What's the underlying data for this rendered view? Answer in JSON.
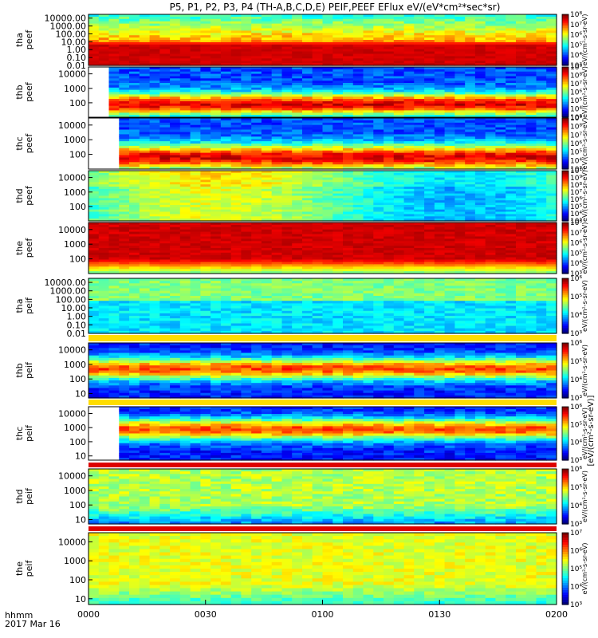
{
  "title": "P5, P1, P2, P3, P4 (TH-A,B,C,D,E) PEIF,PEEF EFlux eV/(eV*cm²*sec*sr)",
  "time_axis": {
    "label_line1": "hhmm",
    "label_line2": "2017 Mar 16",
    "ticks": [
      "0000",
      "0030",
      "0100",
      "0130",
      "0200"
    ]
  },
  "colorbar_label": "[eV/(cm²-s-sr-eV)]",
  "chart_data": {
    "type": "heatmap",
    "x": {
      "label": "hhmm",
      "range": [
        "00:00",
        "02:00"
      ],
      "tick_labels": [
        "0000",
        "0030",
        "0100",
        "0130",
        "0200"
      ]
    },
    "y_scale": "log",
    "z_scale": "log",
    "colormap": "rainbow",
    "panels": [
      {
        "ylabel": [
          "tha",
          "peef"
        ],
        "yticks": [
          "10000.00",
          "1000.00",
          "100.00",
          "10.00",
          "1.00",
          "0.10",
          "0.01"
        ],
        "ylim": [
          0.01,
          30000
        ],
        "cbar": [
          "10⁸",
          "10⁷",
          "10⁶",
          "10⁵",
          "10⁴",
          "10³"
        ],
        "clim": [
          1000,
          100000000
        ],
        "cbar_label": "eV/(cm²-s-sr-eV)"
      },
      {
        "ylabel": [
          "thb",
          "peef"
        ],
        "yticks": [
          "10000",
          "1000",
          "100"
        ],
        "ylim": [
          10,
          30000
        ],
        "cbar": [
          "10⁹",
          "10⁸",
          "10⁷",
          "10⁶",
          "10⁵",
          "10⁴",
          "10³"
        ],
        "clim": [
          1000,
          1000000000
        ],
        "cbar_label": "eV/(cm²-s-sr-eV)"
      },
      {
        "ylabel": [
          "thc",
          "peef"
        ],
        "yticks": [
          "10000",
          "1000",
          "100"
        ],
        "ylim": [
          10,
          30000
        ],
        "cbar": [
          "10⁹",
          "10⁸",
          "10⁷",
          "10⁶",
          "10⁵",
          "10⁴",
          "10³"
        ],
        "clim": [
          1000,
          1000000000
        ],
        "cbar_label": "eV/(cm²-s-sr-eV)"
      },
      {
        "ylabel": [
          "thd",
          "peef"
        ],
        "yticks": [
          "10000",
          "1000",
          "100"
        ],
        "ylim": [
          10,
          30000
        ],
        "cbar": [
          "10¹⁰",
          "10⁹",
          "10⁸",
          "10⁷",
          "10⁶",
          "10⁵",
          "10⁴",
          "10³"
        ],
        "clim": [
          1000,
          10000000000
        ],
        "cbar_label": "eV/(cm²-s-sr-eV)"
      },
      {
        "ylabel": [
          "the",
          "peef"
        ],
        "yticks": [
          "10000",
          "1000",
          "100"
        ],
        "ylim": [
          10,
          30000
        ],
        "cbar": [
          "10⁸",
          "10⁷",
          "10⁶",
          "10⁵",
          "10⁴",
          "10³"
        ],
        "clim": [
          1000,
          100000000
        ],
        "cbar_label": "eV/(cm²-s-sr-eV)"
      },
      {
        "ylabel": [
          "tha",
          "peif"
        ],
        "yticks": [
          "10000.00",
          "1000.00",
          "100.00",
          "10.00",
          "1.00",
          "0.10",
          "0.01"
        ],
        "ylim": [
          0.01,
          30000
        ],
        "cbar": [
          "10⁶",
          "10⁵",
          "10⁴",
          "10³"
        ],
        "clim": [
          1000,
          1000000
        ],
        "cbar_label": "eV/(cm²-s-sr-eV)"
      },
      {
        "ylabel": [
          "thb",
          "peif"
        ],
        "yticks": [
          "10000",
          "1000",
          "100",
          "10"
        ],
        "ylim": [
          5,
          30000
        ],
        "cbar": [
          "10⁶",
          "10⁵",
          "10⁴",
          "10³"
        ],
        "clim": [
          1000,
          1000000
        ],
        "cbar_label": "eV/(cm²-s-sr-eV)"
      },
      {
        "ylabel": [
          "thc",
          "peif"
        ],
        "yticks": [
          "10000",
          "1000",
          "100",
          "10"
        ],
        "ylim": [
          5,
          30000
        ],
        "cbar": [
          "10⁶",
          "10⁵",
          "10⁴",
          "10³"
        ],
        "clim": [
          1000,
          1000000
        ],
        "cbar_label": "eV/(cm²-s-sr-eV)"
      },
      {
        "ylabel": [
          "thd",
          "peif"
        ],
        "yticks": [
          "10000",
          "1000",
          "100",
          "10"
        ],
        "ylim": [
          5,
          30000
        ],
        "cbar": [
          "10⁶",
          "10⁵",
          "10⁴",
          "10³"
        ],
        "clim": [
          1000,
          1000000
        ],
        "cbar_label": "eV/(cm²-s-sr-eV)"
      },
      {
        "ylabel": [
          "the",
          "peif"
        ],
        "yticks": [
          "10000",
          "1000",
          "100",
          "10"
        ],
        "ylim": [
          5,
          30000
        ],
        "cbar": [
          "10⁷",
          "10⁶",
          "10⁵",
          "10⁴",
          "10³"
        ],
        "clim": [
          1000,
          10000000
        ],
        "cbar_label": "eV/(cm²-s-sr-eV)"
      }
    ]
  }
}
